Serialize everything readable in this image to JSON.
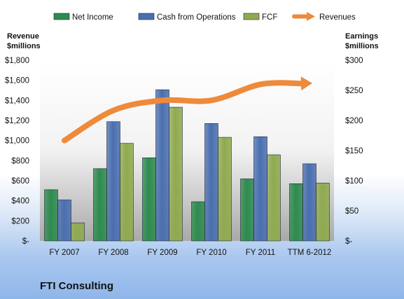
{
  "chart_data": {
    "type": "bar",
    "title": "FTI Consulting",
    "categories": [
      "FY 2007",
      "FY 2008",
      "FY 2009",
      "FY 2010",
      "FY 2011",
      "TTM 6-2012"
    ],
    "series": [
      {
        "name": "Net Income",
        "axis": "right",
        "type": "bar",
        "color": "#2e8b4f",
        "values": [
          85,
          120,
          138,
          65,
          103,
          95
        ]
      },
      {
        "name": "Cash from Operations",
        "axis": "right",
        "type": "bar",
        "color": "#4a6fb0",
        "values": [
          68,
          198,
          251,
          195,
          173,
          128
        ]
      },
      {
        "name": "FCF",
        "axis": "right",
        "type": "bar",
        "color": "#8faa4f",
        "values": [
          30,
          162,
          222,
          172,
          143,
          96
        ]
      },
      {
        "name": "Revenues",
        "axis": "left",
        "type": "line",
        "color": "#ee8a3a",
        "values": [
          1000,
          1300,
          1400,
          1400,
          1560,
          1570
        ]
      }
    ],
    "left_axis": {
      "title_lines": [
        "Revenue",
        "$millions"
      ],
      "ylim": [
        0,
        1800
      ],
      "ticks": [
        0,
        200,
        400,
        600,
        800,
        1000,
        1200,
        1400,
        1600,
        1800
      ],
      "tick_labels": [
        "$-",
        "$200",
        "$400",
        "$600",
        "$800",
        "$1,000",
        "$1,200",
        "$1,400",
        "$1,600",
        "$1,800"
      ]
    },
    "right_axis": {
      "title_lines": [
        "Earnings",
        "$millions"
      ],
      "ylim": [
        0,
        300
      ],
      "ticks": [
        0,
        50,
        100,
        150,
        200,
        250,
        300
      ],
      "tick_labels": [
        "$-",
        "$50",
        "$100",
        "$150",
        "$200",
        "$250",
        "$300"
      ]
    },
    "legend_position": "top",
    "grid": false
  }
}
